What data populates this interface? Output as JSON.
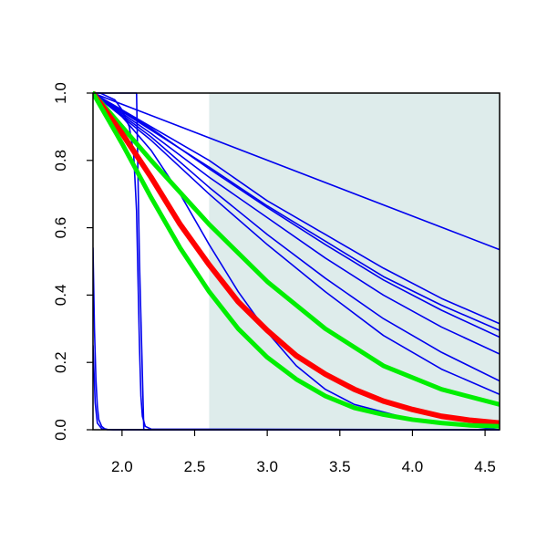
{
  "chart_data": {
    "type": "line",
    "title": "",
    "xlabel": "",
    "ylabel": "",
    "xlim": [
      1.8,
      4.6
    ],
    "ylim": [
      0.0,
      1.0
    ],
    "grid": false,
    "x_ticks": [
      2.0,
      2.5,
      3.0,
      3.5,
      4.0,
      4.5
    ],
    "x_tick_labels": [
      "2.0",
      "2.5",
      "3.0",
      "3.5",
      "4.0",
      "4.5"
    ],
    "y_ticks": [
      0.0,
      0.2,
      0.4,
      0.6,
      0.8,
      1.0
    ],
    "y_tick_labels": [
      "0.0",
      "0.2",
      "0.4",
      "0.6",
      "0.8",
      "1.0"
    ],
    "shaded_region": {
      "x_from": 2.6,
      "x_to": 4.6,
      "color": "#deeceb"
    },
    "colors": {
      "blue": "#0000ee",
      "red": "#ff0000",
      "green": "#00ee00",
      "axis": "#000000"
    },
    "series": [
      {
        "color": "blue",
        "width": 1.6,
        "x": [
          1.8,
          4.6
        ],
        "y": [
          1.0,
          0.535
        ]
      },
      {
        "color": "blue",
        "width": 1.6,
        "x": [
          1.8,
          2.2,
          2.6,
          3.0,
          3.4,
          3.8,
          4.2,
          4.6
        ],
        "y": [
          1.0,
          0.9,
          0.8,
          0.68,
          0.58,
          0.48,
          0.39,
          0.315
        ]
      },
      {
        "color": "blue",
        "width": 1.6,
        "x": [
          1.8,
          2.2,
          2.6,
          3.0,
          3.4,
          3.8,
          4.2,
          4.6
        ],
        "y": [
          1.0,
          0.89,
          0.78,
          0.665,
          0.56,
          0.455,
          0.37,
          0.295
        ]
      },
      {
        "color": "blue",
        "width": 1.6,
        "x": [
          1.8,
          2.2,
          2.6,
          3.0,
          3.4,
          3.8,
          4.2,
          4.6
        ],
        "y": [
          1.0,
          0.895,
          0.775,
          0.66,
          0.55,
          0.445,
          0.355,
          0.275
        ]
      },
      {
        "color": "blue",
        "width": 1.6,
        "x": [
          1.8,
          2.2,
          2.6,
          3.0,
          3.4,
          3.8,
          4.2,
          4.6
        ],
        "y": [
          1.0,
          0.88,
          0.75,
          0.63,
          0.51,
          0.4,
          0.305,
          0.225
        ]
      },
      {
        "color": "blue",
        "width": 1.6,
        "x": [
          1.8,
          2.2,
          2.6,
          3.0,
          3.4,
          3.8,
          4.2,
          4.6
        ],
        "y": [
          1.0,
          0.87,
          0.72,
          0.58,
          0.45,
          0.33,
          0.23,
          0.145
        ]
      },
      {
        "color": "blue",
        "width": 1.6,
        "x": [
          1.8,
          2.2,
          2.6,
          3.0,
          3.4,
          3.8,
          4.2,
          4.6
        ],
        "y": [
          1.0,
          0.86,
          0.7,
          0.55,
          0.41,
          0.28,
          0.18,
          0.105
        ]
      },
      {
        "color": "blue",
        "width": 1.6,
        "x": [
          1.8,
          2.0,
          2.2,
          2.4,
          2.6,
          2.8,
          3.0,
          3.2,
          3.4,
          3.6,
          4.0,
          4.6
        ],
        "y": [
          1.0,
          0.93,
          0.83,
          0.7,
          0.55,
          0.41,
          0.29,
          0.19,
          0.12,
          0.075,
          0.03,
          0.0
        ]
      },
      {
        "color": "blue",
        "width": 1.6,
        "x": [
          1.8,
          1.85,
          1.9,
          1.95,
          2.0,
          2.05,
          2.08,
          2.1,
          2.11,
          2.12,
          2.13,
          2.14,
          2.16,
          2.2,
          4.6
        ],
        "y": [
          1.0,
          1.0,
          0.99,
          0.98,
          0.95,
          0.9,
          0.82,
          0.65,
          0.45,
          0.25,
          0.1,
          0.04,
          0.01,
          0.002,
          0.0
        ]
      },
      {
        "color": "blue",
        "width": 1.6,
        "x": [
          1.8,
          1.9,
          2.1,
          2.12,
          2.15,
          2.2,
          4.6
        ],
        "y": [
          1.0,
          1.0,
          1.0,
          0.5,
          0.0,
          0.0,
          0.0
        ]
      },
      {
        "color": "blue",
        "width": 1.6,
        "x": [
          1.8,
          1.81,
          1.82,
          1.83,
          1.84,
          1.86,
          1.88,
          1.9,
          1.94,
          2.0,
          4.6
        ],
        "y": [
          0.54,
          0.3,
          0.15,
          0.07,
          0.03,
          0.01,
          0.003,
          0.001,
          0.0,
          0.0,
          0.0
        ]
      },
      {
        "color": "blue",
        "width": 1.6,
        "x": [
          1.8,
          1.815,
          1.83,
          1.86,
          1.9,
          4.6
        ],
        "y": [
          0.25,
          0.08,
          0.02,
          0.003,
          0.0,
          0.0
        ]
      },
      {
        "color": "green",
        "width": 5,
        "x": [
          1.8,
          2.2,
          2.6,
          3.0,
          3.4,
          3.8,
          4.2,
          4.6
        ],
        "y": [
          1.0,
          0.8,
          0.61,
          0.44,
          0.3,
          0.19,
          0.12,
          0.075
        ]
      },
      {
        "color": "red",
        "width": 6,
        "x": [
          1.8,
          2.0,
          2.2,
          2.4,
          2.6,
          2.8,
          3.0,
          3.2,
          3.4,
          3.6,
          3.8,
          4.0,
          4.2,
          4.4,
          4.6
        ],
        "y": [
          1.0,
          0.88,
          0.75,
          0.61,
          0.49,
          0.38,
          0.295,
          0.22,
          0.165,
          0.12,
          0.085,
          0.06,
          0.04,
          0.028,
          0.02
        ]
      },
      {
        "color": "green",
        "width": 5,
        "x": [
          1.8,
          2.0,
          2.2,
          2.4,
          2.6,
          2.8,
          3.0,
          3.2,
          3.4,
          3.6,
          3.8,
          4.0,
          4.2,
          4.4,
          4.6
        ],
        "y": [
          1.0,
          0.85,
          0.69,
          0.54,
          0.41,
          0.3,
          0.215,
          0.15,
          0.1,
          0.065,
          0.045,
          0.03,
          0.02,
          0.013,
          0.01
        ]
      }
    ]
  }
}
